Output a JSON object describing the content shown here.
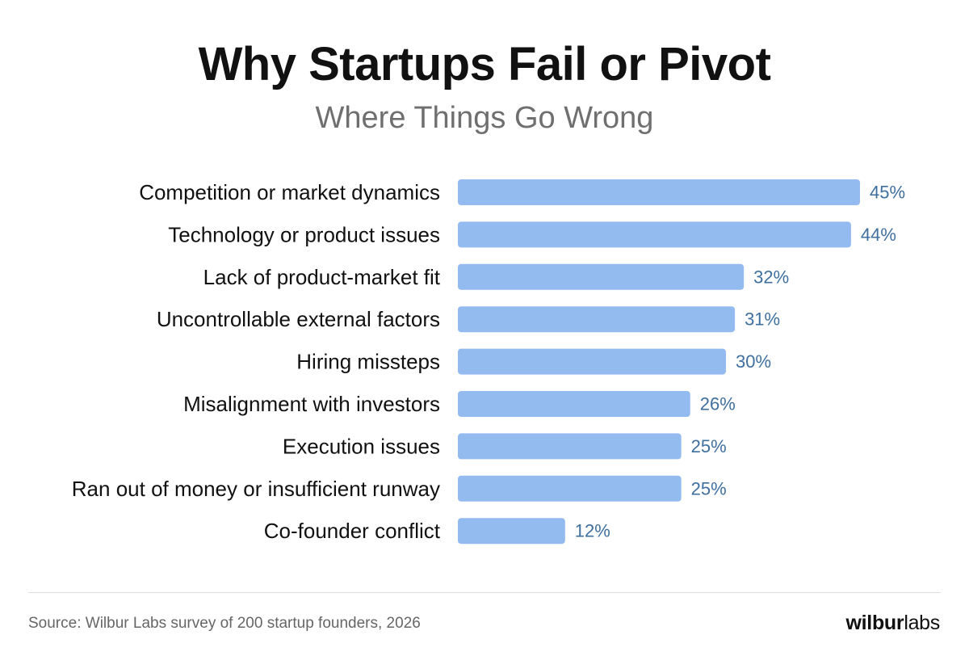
{
  "header": {
    "title": "Why Startups Fail or Pivot",
    "subtitle": "Where Things Go Wrong"
  },
  "chart_data": {
    "type": "bar",
    "orientation": "horizontal",
    "title": "Why Startups Fail or Pivot",
    "subtitle": "Where Things Go Wrong",
    "categories": [
      "Competition or market dynamics",
      "Technology or product issues",
      "Lack of product-market fit",
      "Uncontrollable external factors",
      "Hiring missteps",
      "Misalignment with investors",
      "Execution issues",
      "Ran out of money or insufficient runway",
      "Co-founder conflict"
    ],
    "values": [
      45,
      44,
      32,
      31,
      30,
      26,
      25,
      25,
      12
    ],
    "value_labels": [
      "45%",
      "44%",
      "32%",
      "31%",
      "30%",
      "26%",
      "25%",
      "25%",
      "12%"
    ],
    "unit": "%",
    "xlim": [
      0,
      45
    ],
    "grid": false,
    "legend": "none",
    "colors": {
      "bar": "#93bbf0",
      "value_label": "#3f6f9e"
    }
  },
  "footer": {
    "source": "Source: Wilbur Labs survey of 200 startup founders, 2026",
    "logo_bold": "wilbur",
    "logo_light": "labs"
  }
}
